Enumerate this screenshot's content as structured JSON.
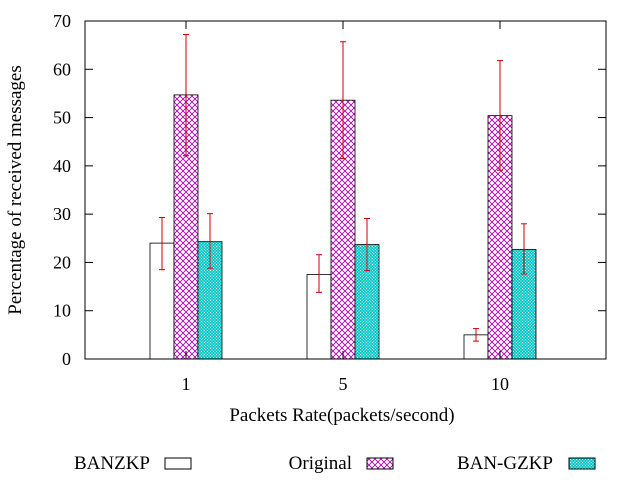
{
  "chart_data": {
    "type": "bar",
    "title": "",
    "xlabel": "Packets Rate(packets/second)",
    "ylabel": "Percentage of received messages",
    "categories": [
      "1",
      "5",
      "10"
    ],
    "ylim": [
      0,
      70
    ],
    "yticks": [
      0,
      10,
      20,
      30,
      40,
      50,
      60,
      70
    ],
    "grid": false,
    "legend_position": "bottom",
    "error_bar_color": "#cc0000",
    "series": [
      {
        "name": "BANZKP",
        "pattern": "none",
        "color": "#000000",
        "values": [
          24,
          17.5,
          5
        ],
        "err_low": [
          18.5,
          13.8,
          3.7
        ],
        "err_high": [
          29.3,
          21.6,
          6.3
        ]
      },
      {
        "name": "Original",
        "pattern": "crosshatch",
        "color": "#b000b0",
        "values": [
          54.7,
          53.6,
          50.4
        ],
        "err_low": [
          42.1,
          41.5,
          39.1
        ],
        "err_high": [
          67.2,
          65.7,
          61.8
        ]
      },
      {
        "name": "BAN-GZKP",
        "pattern": "dots",
        "color": "#00a0a0",
        "values": [
          24.3,
          23.7,
          22.7
        ],
        "err_low": [
          18.8,
          18.3,
          17.6
        ],
        "err_high": [
          30.1,
          29.1,
          28.0
        ]
      }
    ]
  }
}
